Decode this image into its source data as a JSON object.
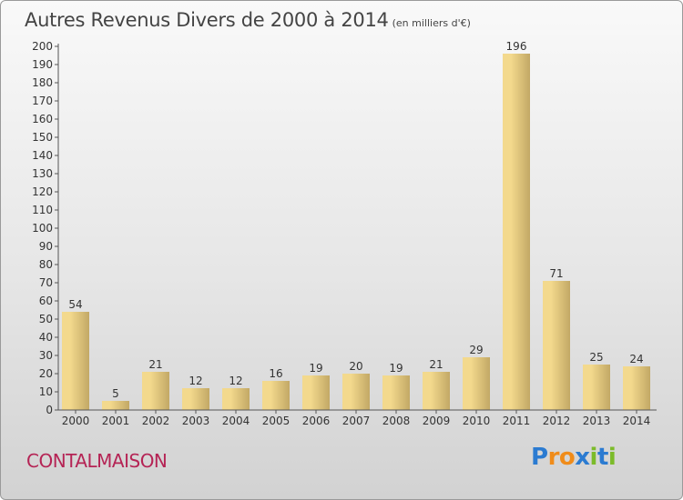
{
  "title": "Autres Revenus Divers de 2000 à 2014",
  "subtitle": "(en milliers d'€)",
  "commune": "CONTALMAISON",
  "brand": {
    "letters": [
      "P",
      "r",
      "o",
      "x",
      "i",
      "t",
      "i"
    ],
    "colors": [
      "#2b7bd1",
      "#f08c1a",
      "#f08c1a",
      "#2b7bd1",
      "#7cbb2a",
      "#2b7bd1",
      "#7cbb2a"
    ]
  },
  "chart_data": {
    "type": "bar",
    "categories": [
      "2000",
      "2001",
      "2002",
      "2003",
      "2004",
      "2005",
      "2006",
      "2007",
      "2008",
      "2009",
      "2010",
      "2011",
      "2012",
      "2013",
      "2014"
    ],
    "values": [
      54,
      5,
      21,
      12,
      12,
      16,
      19,
      20,
      19,
      21,
      29,
      196,
      71,
      25,
      24
    ],
    "ylim": [
      0,
      200
    ],
    "yticks": [
      0,
      10,
      20,
      30,
      40,
      50,
      60,
      70,
      80,
      90,
      100,
      110,
      120,
      130,
      140,
      150,
      160,
      170,
      180,
      190,
      200
    ],
    "grid": false,
    "bar_color_light": "#f3d98d",
    "bar_color_dark": "#c2a865"
  }
}
